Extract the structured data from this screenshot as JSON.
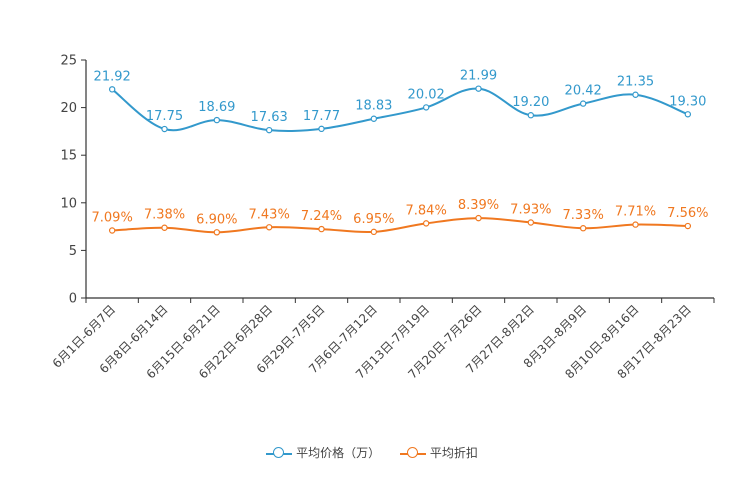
{
  "chart_data": {
    "type": "line",
    "categories": [
      "6月1日-6月7日",
      "6月8日-6月14日",
      "6月15日-6月21日",
      "6月22日-6月28日",
      "6月29日-7月5日",
      "7月6日-7月12日",
      "7月13日-7月19日",
      "7月20日-7月26日",
      "7月27日-8月2日",
      "8月3日-8月9日",
      "8月10日-8月16日",
      "8月17日-8月23日"
    ],
    "series": [
      {
        "name": "平均价格（万）",
        "color": "#3399cc",
        "values": [
          21.92,
          17.75,
          18.69,
          17.63,
          17.77,
          18.83,
          20.02,
          21.99,
          19.2,
          20.42,
          21.35,
          19.3
        ],
        "labels": [
          "21.92",
          "17.75",
          "18.69",
          "17.63",
          "17.77",
          "18.83",
          "20.02",
          "21.99",
          "19.20",
          "20.42",
          "21.35",
          "19.30"
        ]
      },
      {
        "name": "平均折扣",
        "color": "#f07820",
        "values": [
          7.09,
          7.38,
          6.9,
          7.43,
          7.24,
          6.95,
          7.84,
          8.39,
          7.93,
          7.33,
          7.71,
          7.56
        ],
        "labels": [
          "7.09%",
          "7.38%",
          "6.90%",
          "7.43%",
          "7.24%",
          "6.95%",
          "7.84%",
          "8.39%",
          "7.93%",
          "7.33%",
          "7.71%",
          "7.56%"
        ]
      }
    ],
    "ylim": [
      0,
      25
    ],
    "yticks": [
      "0",
      "5",
      "10",
      "15",
      "20",
      "25"
    ],
    "title": "",
    "xlabel": "",
    "ylabel": "",
    "legend_position": "bottom-center",
    "grid": false
  }
}
